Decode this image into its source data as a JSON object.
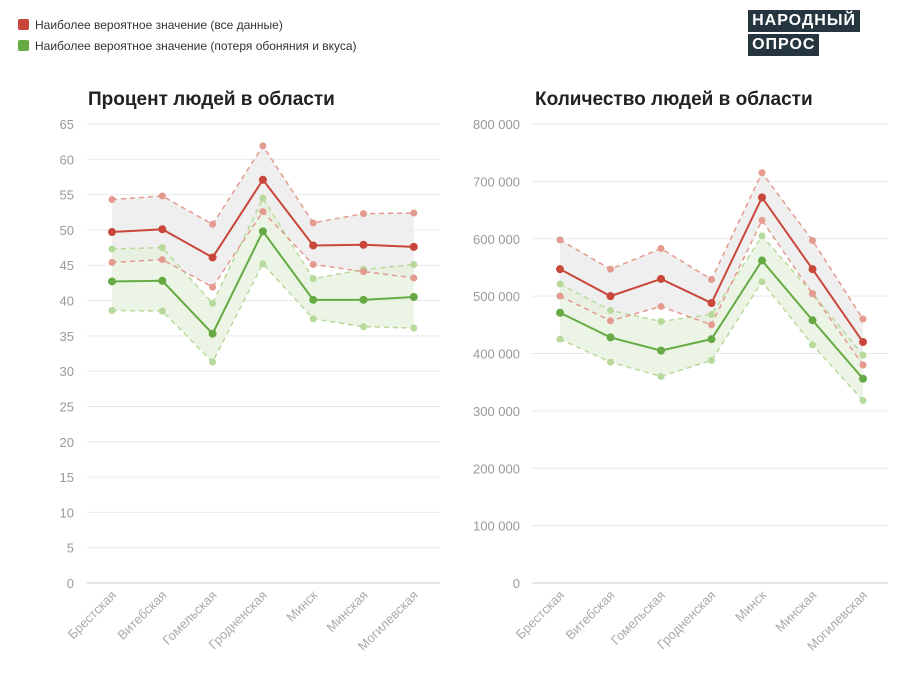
{
  "legend": {
    "all_data": "Наиболее вероятное значение (все данные)",
    "smell_taste": "Наиболее вероятное значение (потеря обоняния и вкуса)"
  },
  "logo": {
    "line1": "НАРОДНЫЙ",
    "line2": "ОПРОС"
  },
  "colors": {
    "red": "#c9473a",
    "red_light": "#e49a8f",
    "green": "#66aa45",
    "green_light": "#b7da9c",
    "band_gray": "#ececec",
    "band_green": "#e6f2dc"
  },
  "chart_data": [
    {
      "type": "line",
      "title": "Процент людей в области",
      "categories": [
        "Брестская",
        "Витебская",
        "Гомельская",
        "Гродненская",
        "Минск",
        "Минская",
        "Могилевская"
      ],
      "ylim": [
        0,
        65
      ],
      "yticks": [
        "0",
        "5",
        "10",
        "15",
        "20",
        "25",
        "30",
        "35",
        "40",
        "45",
        "50",
        "55",
        "60",
        "65"
      ],
      "grid": true,
      "series": [
        {
          "name": "Наиболее вероятное значение (все данные)",
          "values": [
            49.7,
            50.1,
            46.1,
            57.1,
            47.8,
            47.9,
            47.6
          ]
        },
        {
          "name": "Наиболее вероятное значение (потеря обоняния и вкуса)",
          "values": [
            42.7,
            42.8,
            35.3,
            49.8,
            40.1,
            40.1,
            40.5
          ]
        }
      ],
      "bounds": {
        "all_upper": [
          54.3,
          54.8,
          50.8,
          61.9,
          51.0,
          52.3,
          52.4
        ],
        "all_lower": [
          45.4,
          45.8,
          41.9,
          52.6,
          45.1,
          44.1,
          43.2
        ],
        "smell_upper": [
          47.3,
          47.5,
          39.6,
          54.5,
          43.1,
          44.4,
          45.1
        ],
        "smell_lower": [
          38.6,
          38.5,
          31.3,
          45.2,
          37.4,
          36.3,
          36.1
        ]
      }
    },
    {
      "type": "line",
      "title": "Количество людей в области",
      "categories": [
        "Брестская",
        "Витебская",
        "Гомельская",
        "Гродненская",
        "Минск",
        "Минская",
        "Могилевская"
      ],
      "ylim": [
        0,
        800000
      ],
      "yticks": [
        "0",
        "100 000",
        "200 000",
        "300 000",
        "400 000",
        "500 000",
        "600 000",
        "700 000",
        "800 000"
      ],
      "grid": true,
      "series": [
        {
          "name": "Наиболее вероятное значение (все данные)",
          "values": [
            547000,
            500000,
            530000,
            488000,
            672000,
            547000,
            420000
          ]
        },
        {
          "name": "Наиболее вероятное значение (потеря обоняния и вкуса)",
          "values": [
            471000,
            428000,
            405000,
            425000,
            562000,
            458000,
            356000
          ]
        }
      ],
      "bounds": {
        "all_upper": [
          598000,
          547000,
          583000,
          529000,
          715000,
          597000,
          460000
        ],
        "all_lower": [
          500000,
          457000,
          482000,
          450000,
          632000,
          504000,
          380000
        ],
        "smell_upper": [
          521000,
          475000,
          456000,
          468000,
          605000,
          505000,
          397000
        ],
        "smell_lower": [
          425000,
          385000,
          360000,
          388000,
          525000,
          415000,
          318000
        ]
      }
    }
  ]
}
